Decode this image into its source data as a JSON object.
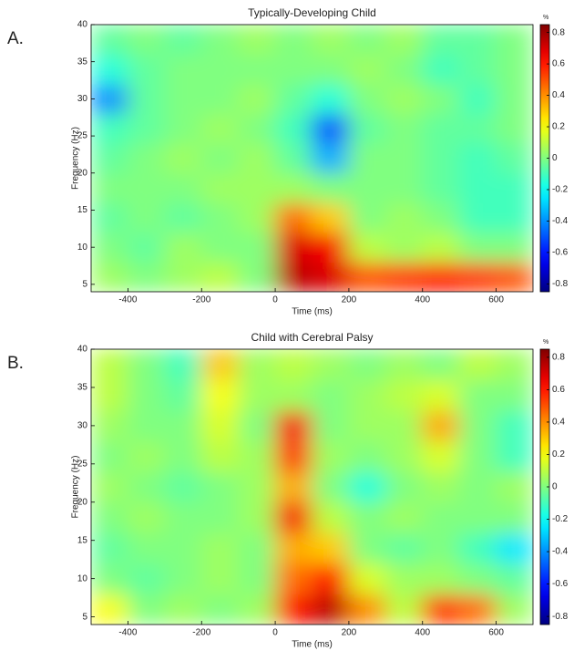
{
  "chart_data": [
    {
      "type": "heatmap",
      "label": "A.",
      "title": "Typically-Developing Child",
      "x_label": "Time (ms)",
      "y_label": "Frequency (Hz)",
      "colorbar_label": "%",
      "xlim": [
        -500,
        700
      ],
      "ylim": [
        4,
        40
      ],
      "xticks": [
        -400,
        -200,
        0,
        200,
        400,
        600
      ],
      "yticks": [
        5,
        10,
        15,
        20,
        25,
        30,
        35,
        40
      ],
      "zlim": [
        -0.85,
        0.85
      ],
      "zticks": [
        0.8,
        0.6,
        0.4,
        0.2,
        0,
        -0.2,
        -0.4,
        -0.6,
        -0.8
      ],
      "x": [
        -450,
        -350,
        -250,
        -150,
        -50,
        50,
        150,
        250,
        350,
        450,
        550,
        650
      ],
      "y": [
        6,
        10,
        14,
        18,
        22,
        26,
        30,
        34,
        38
      ],
      "z": [
        [
          0.05,
          0.0,
          0.05,
          0.1,
          0.0,
          0.75,
          0.7,
          0.5,
          0.55,
          0.6,
          0.55,
          0.5
        ],
        [
          0.0,
          -0.05,
          0.05,
          0.0,
          0.0,
          0.7,
          0.65,
          0.1,
          0.05,
          0.1,
          0.0,
          0.0
        ],
        [
          -0.05,
          0.0,
          -0.05,
          0.0,
          0.05,
          0.45,
          0.3,
          0.0,
          0.05,
          0.0,
          -0.1,
          -0.1
        ],
        [
          0.0,
          0.0,
          0.0,
          0.05,
          0.05,
          0.05,
          0.0,
          0.0,
          0.0,
          -0.05,
          -0.1,
          -0.1
        ],
        [
          -0.05,
          0.0,
          0.05,
          0.0,
          0.05,
          -0.05,
          -0.35,
          0.0,
          0.0,
          -0.05,
          -0.1,
          -0.05
        ],
        [
          -0.1,
          -0.05,
          0.0,
          0.05,
          0.0,
          -0.1,
          -0.5,
          -0.05,
          0.0,
          -0.05,
          -0.05,
          0.0
        ],
        [
          -0.4,
          -0.05,
          0.0,
          0.0,
          0.05,
          -0.05,
          -0.15,
          0.0,
          0.05,
          0.0,
          -0.1,
          0.0
        ],
        [
          -0.15,
          -0.05,
          0.0,
          0.0,
          0.0,
          0.0,
          0.0,
          0.05,
          0.0,
          -0.1,
          -0.05,
          0.0
        ],
        [
          -0.05,
          0.0,
          -0.05,
          0.0,
          0.05,
          0.0,
          0.05,
          0.0,
          0.05,
          -0.05,
          -0.05,
          0.0
        ]
      ]
    },
    {
      "type": "heatmap",
      "label": "B.",
      "title": "Child with Cerebral Palsy",
      "x_label": "Time (ms)",
      "y_label": "Frequency (Hz)",
      "colorbar_label": "%",
      "xlim": [
        -500,
        700
      ],
      "ylim": [
        4,
        40
      ],
      "xticks": [
        -400,
        -200,
        0,
        200,
        400,
        600
      ],
      "yticks": [
        5,
        10,
        15,
        20,
        25,
        30,
        35,
        40
      ],
      "zlim": [
        -0.85,
        0.85
      ],
      "zticks": [
        0.8,
        0.6,
        0.4,
        0.2,
        0,
        -0.2,
        -0.4,
        -0.6,
        -0.8
      ],
      "x": [
        -450,
        -350,
        -250,
        -150,
        -50,
        50,
        150,
        250,
        350,
        450,
        550,
        650
      ],
      "y": [
        6,
        10,
        14,
        18,
        22,
        26,
        30,
        34,
        38
      ],
      "z": [
        [
          0.2,
          0.0,
          0.05,
          0.0,
          0.05,
          0.6,
          0.75,
          0.4,
          0.1,
          0.55,
          0.45,
          0.05
        ],
        [
          0.0,
          -0.05,
          0.0,
          0.05,
          0.0,
          0.45,
          0.6,
          0.15,
          0.05,
          0.05,
          0.0,
          -0.05
        ],
        [
          -0.05,
          0.0,
          0.0,
          0.05,
          0.0,
          0.35,
          0.3,
          0.0,
          -0.05,
          0.0,
          -0.1,
          -0.25
        ],
        [
          0.0,
          0.05,
          0.0,
          0.0,
          0.05,
          0.65,
          0.1,
          0.0,
          0.05,
          0.0,
          0.0,
          0.0
        ],
        [
          0.05,
          0.0,
          -0.05,
          0.0,
          0.05,
          0.35,
          0.0,
          -0.15,
          0.0,
          0.05,
          0.0,
          0.05
        ],
        [
          0.0,
          0.05,
          0.0,
          0.1,
          0.05,
          0.55,
          0.05,
          0.0,
          0.05,
          0.15,
          0.0,
          -0.1
        ],
        [
          0.05,
          0.0,
          0.0,
          0.15,
          0.0,
          0.65,
          0.0,
          0.05,
          0.05,
          0.35,
          0.0,
          -0.1
        ],
        [
          0.1,
          0.0,
          -0.05,
          0.2,
          0.05,
          0.05,
          0.0,
          0.05,
          0.1,
          0.15,
          0.0,
          0.0
        ],
        [
          0.1,
          0.0,
          -0.1,
          0.3,
          0.05,
          0.1,
          0.05,
          0.0,
          0.05,
          0.0,
          0.1,
          0.05
        ]
      ]
    }
  ]
}
